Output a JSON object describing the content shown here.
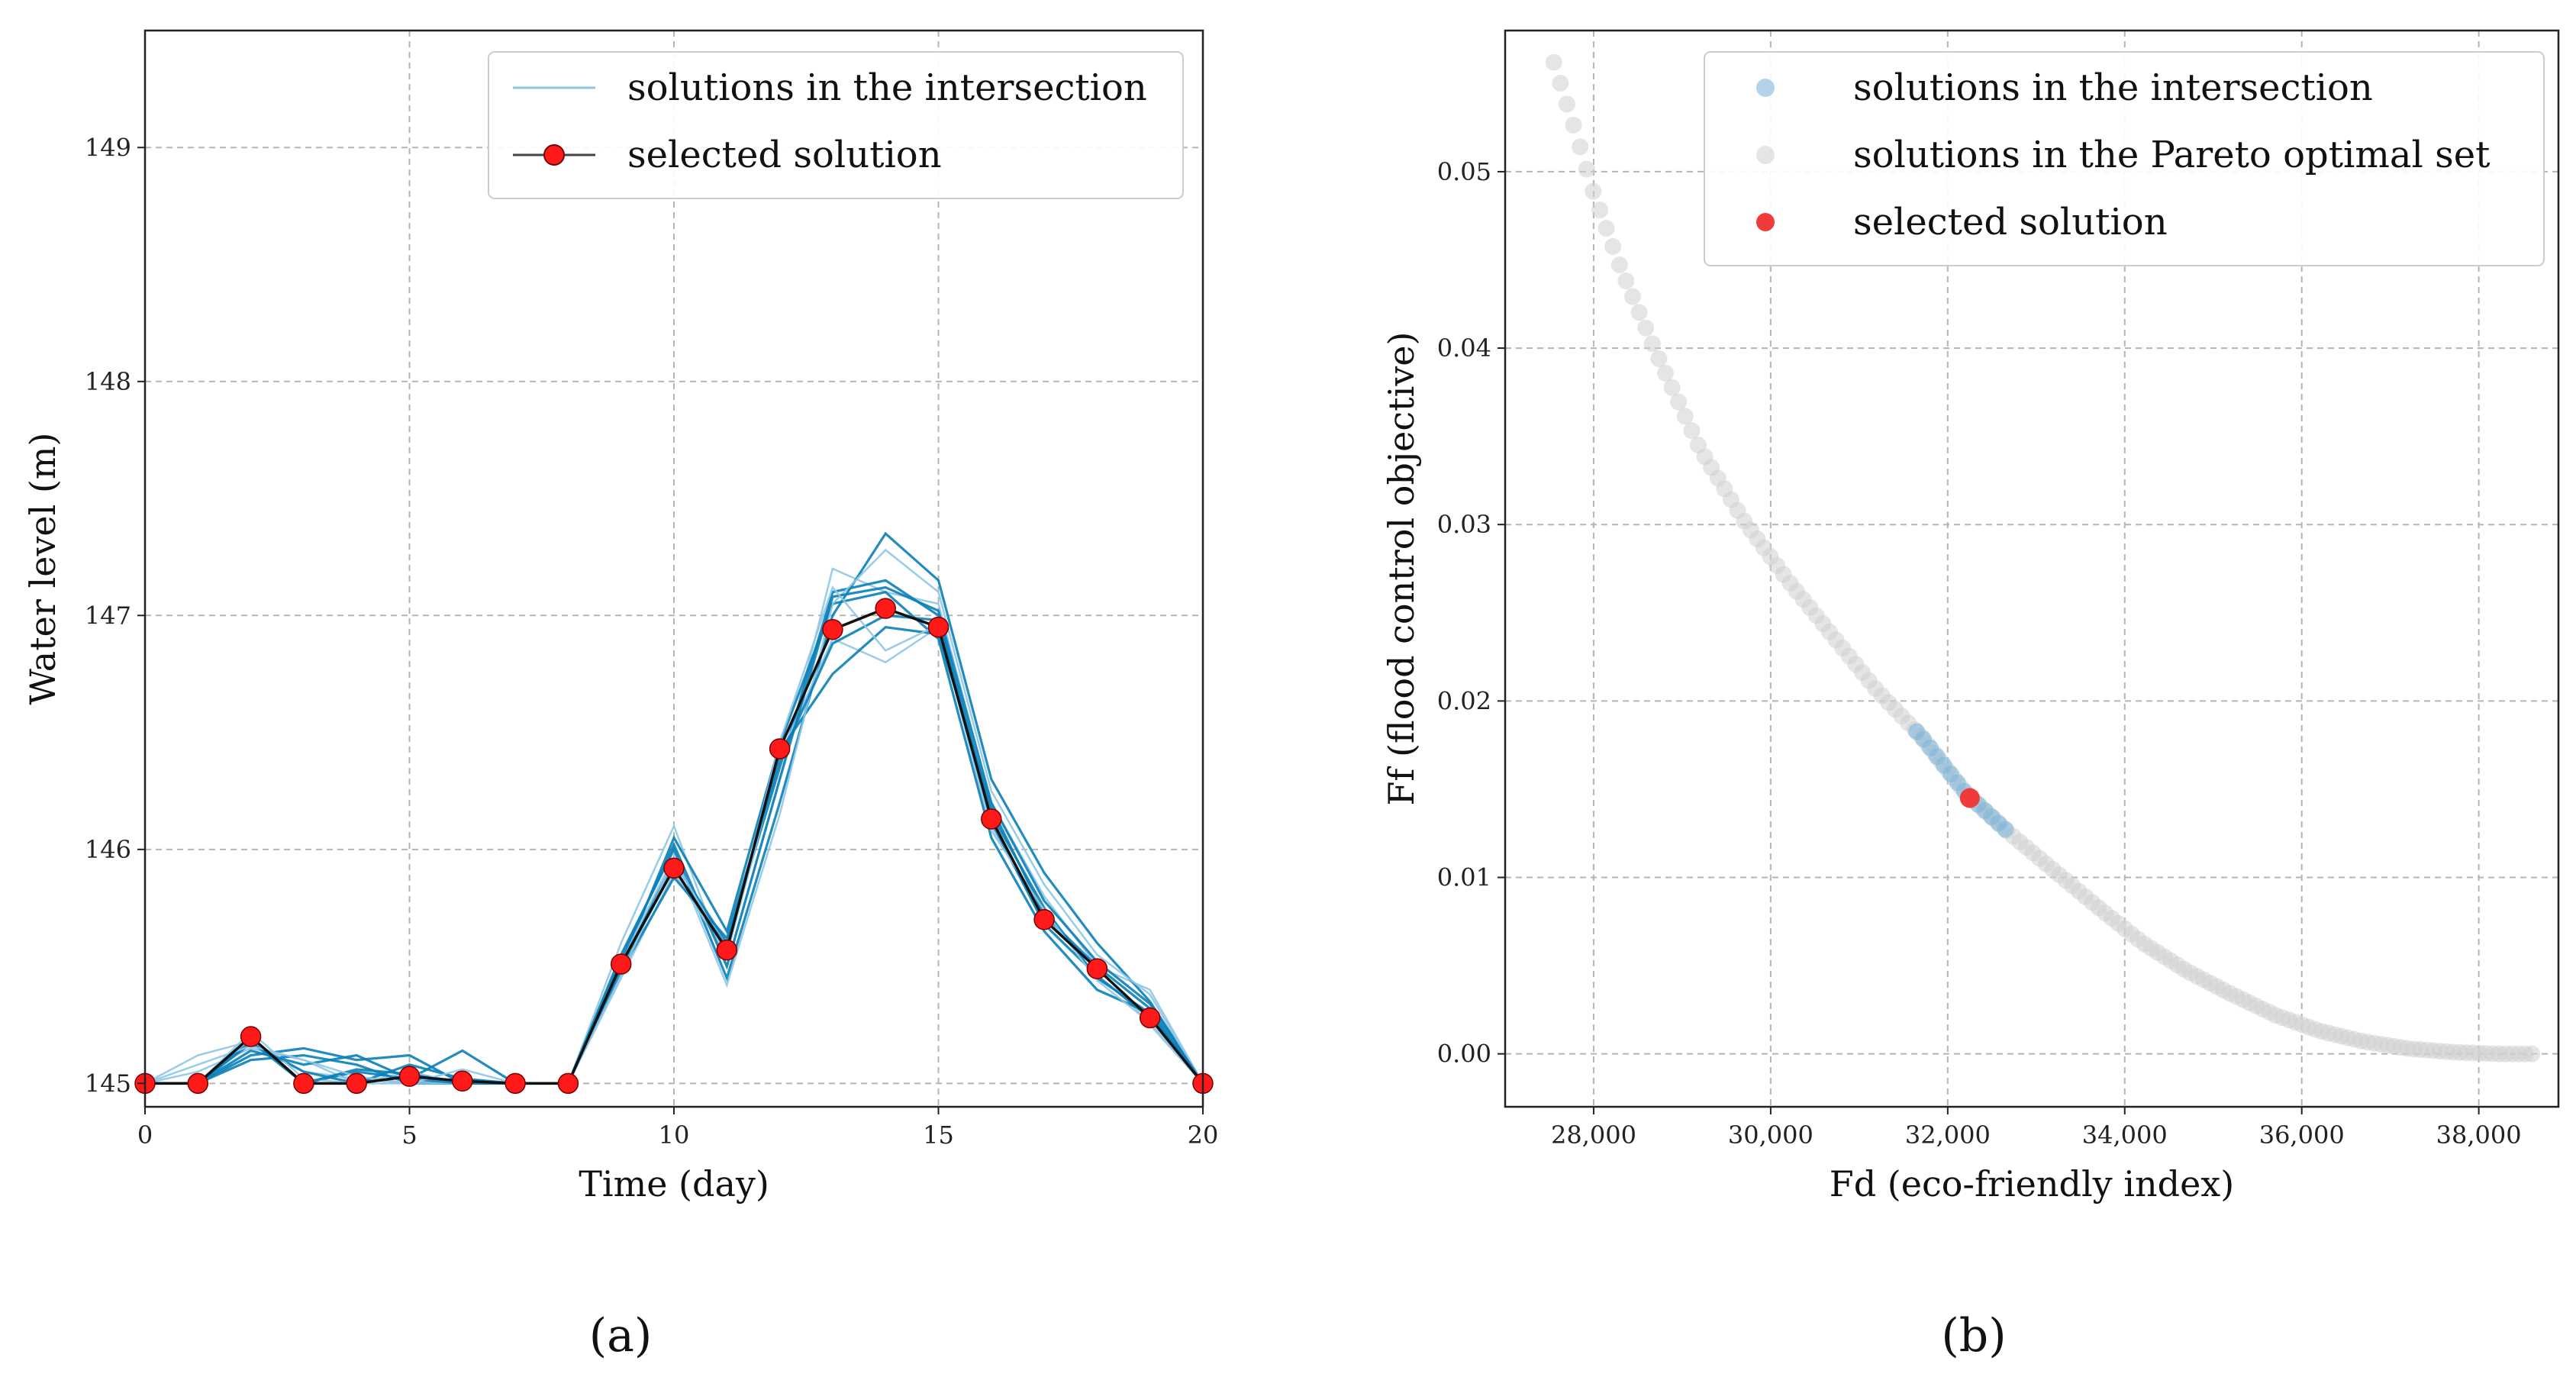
{
  "colors": {
    "intersection": "#0b7fb8",
    "intersection_light": "#8ec6e6",
    "selected": "#ff1a1a",
    "selected_line": "#111111",
    "pareto": "#cfcfcf",
    "intersection_dot": "#7fb5d8",
    "selected_dot": "#f03b3b"
  },
  "panels": {
    "a": "(a)",
    "b": "(b)"
  },
  "chart_data": [
    {
      "type": "line",
      "xlabel": "Time (day)",
      "ylabel": "Water level (m)",
      "xlim": [
        0,
        20
      ],
      "ylim": [
        144.9,
        149.5
      ],
      "xticks": [
        0,
        5,
        10,
        15,
        20
      ],
      "yticks": [
        145,
        146,
        147,
        148,
        149
      ],
      "grid": true,
      "legend_position": "top-right",
      "legend": [
        "solutions in the intersection",
        "selected solution"
      ],
      "x": [
        0,
        1,
        2,
        3,
        4,
        5,
        6,
        7,
        8,
        9,
        10,
        11,
        12,
        13,
        14,
        15,
        16,
        17,
        18,
        19,
        20
      ],
      "intersection_series": [
        [
          145,
          145.12,
          145.18,
          145.05,
          145.02,
          145.0,
          145.02,
          145.0,
          145.0,
          145.6,
          146.1,
          145.5,
          146.3,
          147.2,
          147.1,
          147.05,
          146.2,
          145.8,
          145.5,
          145.4,
          145.0
        ],
        [
          145,
          145.0,
          145.12,
          145.15,
          145.1,
          145.12,
          145.0,
          145.0,
          145.0,
          145.55,
          146.0,
          145.45,
          146.2,
          147.0,
          147.35,
          147.15,
          146.3,
          145.9,
          145.6,
          145.35,
          145.0
        ],
        [
          145,
          145.0,
          145.2,
          145.0,
          145.05,
          145.02,
          145.14,
          145.0,
          145.0,
          145.5,
          145.95,
          145.6,
          146.35,
          147.1,
          147.15,
          147.0,
          146.15,
          145.75,
          145.45,
          145.3,
          145.0
        ],
        [
          145,
          145.05,
          145.15,
          145.1,
          145.0,
          145.05,
          145.0,
          145.0,
          145.0,
          145.45,
          145.9,
          145.55,
          146.4,
          146.9,
          146.8,
          146.95,
          146.1,
          145.7,
          145.5,
          145.25,
          145.0
        ],
        [
          145,
          145.0,
          145.1,
          145.12,
          145.08,
          145.0,
          145.0,
          145.0,
          145.0,
          145.5,
          146.05,
          145.65,
          146.45,
          147.05,
          147.1,
          146.9,
          146.05,
          145.65,
          145.4,
          145.3,
          145.0
        ],
        [
          145,
          145.0,
          145.17,
          145.05,
          145.0,
          145.08,
          145.02,
          145.0,
          145.0,
          145.5,
          145.92,
          145.58,
          146.42,
          146.75,
          146.95,
          146.92,
          146.18,
          145.72,
          145.5,
          145.32,
          145.0
        ],
        [
          145,
          145.0,
          145.22,
          145.02,
          145.0,
          145.0,
          145.0,
          145.0,
          145.0,
          145.52,
          145.97,
          145.42,
          146.15,
          147.05,
          147.28,
          147.1,
          146.25,
          145.85,
          145.55,
          145.38,
          145.0
        ],
        [
          145,
          145.0,
          145.14,
          145.08,
          145.12,
          145.02,
          145.0,
          145.0,
          145.0,
          145.48,
          145.88,
          145.62,
          146.38,
          146.88,
          147.0,
          146.98,
          146.12,
          145.68,
          145.46,
          145.28,
          145.0
        ],
        [
          145,
          145.0,
          145.18,
          145.0,
          145.06,
          145.04,
          145.0,
          145.0,
          145.0,
          145.53,
          146.02,
          145.5,
          146.3,
          147.08,
          147.12,
          147.02,
          146.2,
          145.78,
          145.52,
          145.34,
          145.0
        ],
        [
          145,
          145.08,
          145.16,
          145.1,
          145.03,
          145.0,
          145.06,
          145.0,
          145.0,
          145.46,
          145.96,
          145.56,
          146.46,
          147.12,
          146.85,
          146.96,
          146.08,
          145.74,
          145.44,
          145.26,
          145.0
        ]
      ],
      "selected": [
        145,
        145,
        145.2,
        145.0,
        145.0,
        145.03,
        145.01,
        145.0,
        145.0,
        145.51,
        145.92,
        145.57,
        146.43,
        146.94,
        147.03,
        146.95,
        146.13,
        145.7,
        145.49,
        145.28,
        145.0
      ]
    },
    {
      "type": "scatter",
      "xlabel": "Fd (eco-friendly index)",
      "ylabel": "Ff (flood control objective)",
      "xlim": [
        27000,
        38900
      ],
      "ylim": [
        -0.003,
        0.058
      ],
      "xticks": [
        28000,
        30000,
        32000,
        34000,
        36000,
        38000
      ],
      "xtick_labels": [
        "28,000",
        "30,000",
        "32,000",
        "34,000",
        "36,000",
        "38,000"
      ],
      "yticks": [
        0.0,
        0.01,
        0.02,
        0.03,
        0.04,
        0.05
      ],
      "ytick_labels": [
        "0.00",
        "0.01",
        "0.02",
        "0.03",
        "0.04",
        "0.05"
      ],
      "grid": true,
      "legend_position": "top-right",
      "legend": [
        "solutions in the intersection",
        "solutions in the Pareto optimal set",
        "selected solution"
      ],
      "pareto_front": {
        "x_min": 27550,
        "x_max": 38600,
        "count": 150,
        "points": [
          [
            27550,
            0.0562
          ],
          [
            27800,
            0.0522
          ],
          [
            28000,
            0.0488
          ],
          [
            28300,
            0.0446
          ],
          [
            28700,
            0.0398
          ],
          [
            29200,
            0.0343
          ],
          [
            29700,
            0.0302
          ],
          [
            30200,
            0.0268
          ],
          [
            30700,
            0.0237
          ],
          [
            31200,
            0.0206
          ],
          [
            31700,
            0.018
          ],
          [
            32200,
            0.0148
          ],
          [
            32700,
            0.0125
          ],
          [
            33200,
            0.0104
          ],
          [
            33700,
            0.0083
          ],
          [
            34200,
            0.0063
          ],
          [
            34700,
            0.0047
          ],
          [
            35200,
            0.0034
          ],
          [
            35700,
            0.0022
          ],
          [
            36200,
            0.0013
          ],
          [
            36700,
            0.0007
          ],
          [
            37200,
            0.0003
          ],
          [
            37700,
            0.0001
          ],
          [
            38200,
            0.0
          ],
          [
            38600,
            0.0
          ]
        ]
      },
      "intersection": {
        "x_min": 31650,
        "x_max": 32650,
        "count": 14
      },
      "selected": {
        "x": 32250,
        "y": 0.0145
      }
    }
  ]
}
